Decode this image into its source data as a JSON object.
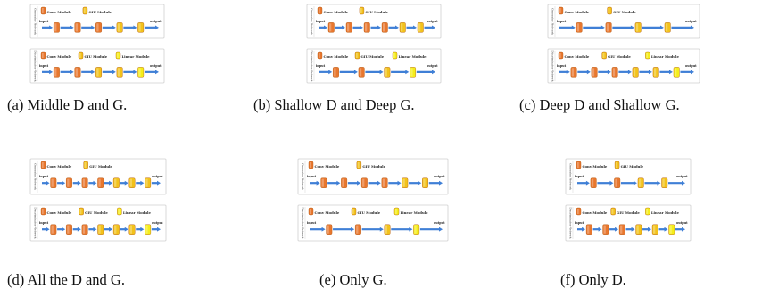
{
  "labels": {
    "generator_side": "Generator Network",
    "discriminator_side": "Discriminator Network",
    "input": "input",
    "output": "output",
    "conv_module": "Conv Module",
    "glu_module": "GIU Module",
    "linear_module": "Linear Module"
  },
  "colors": {
    "conv": "#e8772e",
    "glu": "#f2c21b",
    "linear": "#f5ee1a",
    "arrow": "#3f7fd6",
    "border": "#cfcfcf"
  },
  "panels": [
    {
      "caption": "(a) Middle D and G.",
      "gen_pattern": [
        "conv",
        "conv",
        "conv",
        "glu",
        "glu"
      ],
      "dis_pattern": [
        "conv",
        "conv",
        "glu",
        "glu",
        "linear"
      ]
    },
    {
      "caption": "(b) Shallow D and Deep G.",
      "gen_pattern": [
        "conv",
        "conv",
        "conv",
        "conv",
        "glu",
        "glu"
      ],
      "dis_pattern": [
        "conv",
        "conv",
        "glu",
        "linear"
      ]
    },
    {
      "caption": "(c) Deep D and Shallow G.",
      "gen_pattern": [
        "conv",
        "conv",
        "glu",
        "glu"
      ],
      "dis_pattern": [
        "conv",
        "conv",
        "conv",
        "glu",
        "glu",
        "linear"
      ]
    },
    {
      "caption": "(d) All the D and G.",
      "gen_pattern": [
        "conv",
        "conv",
        "conv",
        "conv",
        "glu",
        "glu",
        "glu"
      ],
      "dis_pattern": [
        "conv",
        "conv",
        "conv",
        "glu",
        "glu",
        "glu",
        "linear"
      ]
    },
    {
      "caption": "(e) Only G.",
      "gen_pattern": [
        "conv",
        "conv",
        "conv",
        "conv",
        "glu",
        "glu"
      ],
      "dis_pattern": [
        "conv",
        "conv",
        "glu",
        "linear"
      ]
    },
    {
      "caption": "(f) Only D.",
      "gen_pattern": [
        "conv",
        "conv",
        "glu",
        "glu"
      ],
      "dis_pattern": [
        "conv",
        "conv",
        "conv",
        "glu",
        "glu",
        "linear"
      ]
    }
  ]
}
